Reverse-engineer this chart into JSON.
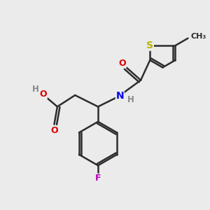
{
  "bg_color": "#ebebeb",
  "bond_color": "#2d2d2d",
  "atom_colors": {
    "O": "#dd0000",
    "N": "#0000ee",
    "S": "#b8b800",
    "F": "#bb00bb",
    "H": "#888888",
    "C": "#2d2d2d"
  },
  "figsize": [
    3.0,
    3.0
  ],
  "dpi": 100,
  "xlim": [
    0,
    10
  ],
  "ylim": [
    0,
    10
  ]
}
